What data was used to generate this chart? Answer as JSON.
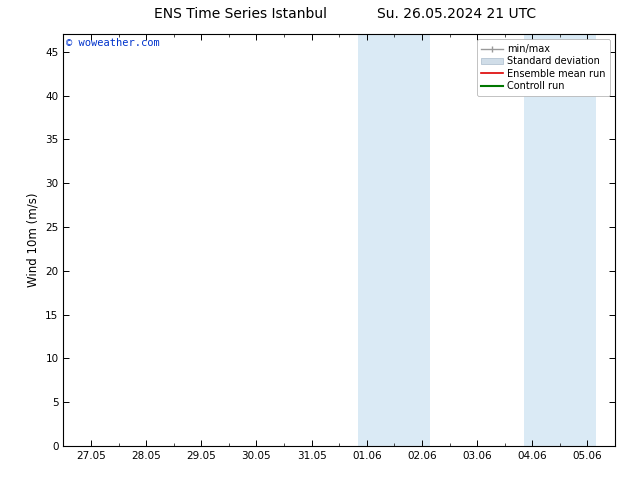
{
  "title_left": "ENS Time Series Istanbul",
  "title_right": "Su. 26.05.2024 21 UTC",
  "ylabel": "Wind 10m (m/s)",
  "ylim": [
    0,
    47
  ],
  "yticks": [
    0,
    5,
    10,
    15,
    20,
    25,
    30,
    35,
    40,
    45
  ],
  "xtick_labels": [
    "27.05",
    "28.05",
    "29.05",
    "30.05",
    "31.05",
    "01.06",
    "02.06",
    "03.06",
    "04.06",
    "05.06"
  ],
  "xtick_positions": [
    0,
    1,
    2,
    3,
    4,
    5,
    6,
    7,
    8,
    9
  ],
  "xlim": [
    -0.5,
    9.5
  ],
  "blue_bands": [
    [
      4.85,
      5.5
    ],
    [
      5.5,
      6.15
    ],
    [
      7.85,
      8.5
    ],
    [
      8.5,
      9.15
    ]
  ],
  "band_color": "#daeaf5",
  "bg_color": "#ffffff",
  "watermark": "© woweather.com",
  "watermark_color": "#0033cc",
  "legend_items": [
    {
      "label": "min/max",
      "color": "#999999",
      "lw": 1.0
    },
    {
      "label": "Standard deviation",
      "color": "#ccddee",
      "lw": 8
    },
    {
      "label": "Ensemble mean run",
      "color": "#dd0000",
      "lw": 1.2
    },
    {
      "label": "Controll run",
      "color": "#007700",
      "lw": 1.5
    }
  ],
  "title_fontsize": 10,
  "tick_fontsize": 7.5,
  "ylabel_fontsize": 8.5,
  "legend_fontsize": 7
}
